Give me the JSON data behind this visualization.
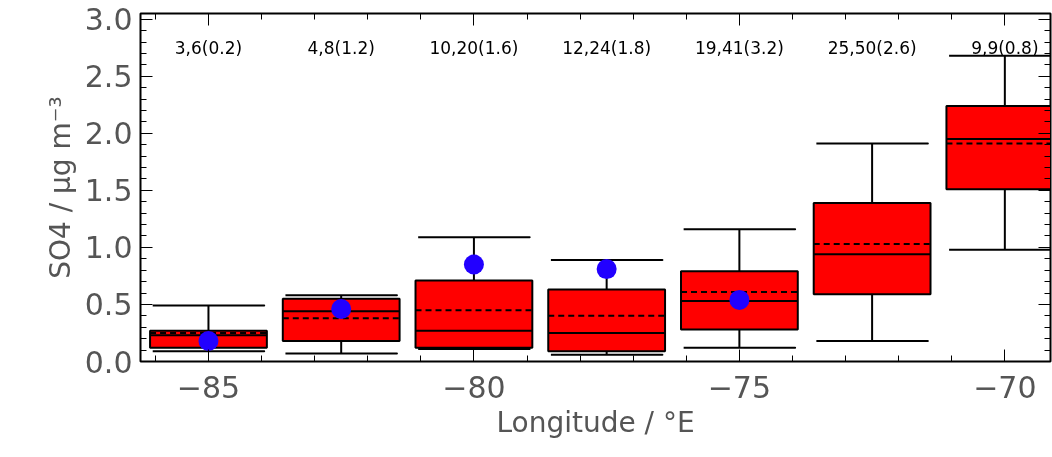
{
  "chart_data": {
    "type": "box",
    "xlabel": "Longitude / °E",
    "ylabel": "SO4 / μg m⁻³",
    "x": [
      -85,
      -82.5,
      -80,
      -77.5,
      -75,
      -72.5,
      -70
    ],
    "color": "#ff0000",
    "boxes": [
      {
        "low": 0.09,
        "q1": 0.12,
        "median": 0.23,
        "q3": 0.27,
        "high": 0.49,
        "mean": 0.25
      },
      {
        "low": 0.07,
        "q1": 0.18,
        "median": 0.44,
        "q3": 0.55,
        "high": 0.58,
        "mean": 0.38
      },
      {
        "low": 0.11,
        "q1": 0.12,
        "median": 0.27,
        "q3": 0.71,
        "high": 1.09,
        "mean": 0.45
      },
      {
        "low": 0.06,
        "q1": 0.09,
        "median": 0.25,
        "q3": 0.63,
        "high": 0.89,
        "mean": 0.4
      },
      {
        "low": 0.12,
        "q1": 0.28,
        "median": 0.53,
        "q3": 0.79,
        "high": 1.16,
        "mean": 0.61
      },
      {
        "low": 0.18,
        "q1": 0.59,
        "median": 0.94,
        "q3": 1.39,
        "high": 1.91,
        "mean": 1.03
      },
      {
        "low": 0.98,
        "q1": 1.51,
        "median": 1.95,
        "q3": 2.24,
        "high": 2.68,
        "mean": 1.91
      }
    ],
    "series": [
      {
        "type": "scatter",
        "color": "#2200ff",
        "marker": "circle",
        "x": [
          -85,
          -82.5,
          -80,
          -77.5,
          -75
        ],
        "values": [
          0.18,
          0.46,
          0.85,
          0.81,
          0.54
        ]
      }
    ],
    "xlim": [
      -86.28,
      -69.14
    ],
    "xticks": [
      -85,
      -80,
      -75,
      -70
    ],
    "ylim": [
      0,
      3.05
    ],
    "yticks": [
      {
        "value": 0,
        "label": "0.0"
      },
      0.5,
      {
        "value": 1,
        "label": "1.0"
      },
      1.5,
      {
        "value": 2,
        "label": "2.0"
      },
      2.5,
      {
        "value": 3,
        "label": "3.0"
      }
    ],
    "annotations": [
      "3,6(0.2)",
      "4,8(1.2)",
      "10,20(1.6)",
      "12,24(1.8)",
      "19,41(3.2)",
      "25,50(2.6)",
      "9,9(0.8)"
    ]
  }
}
